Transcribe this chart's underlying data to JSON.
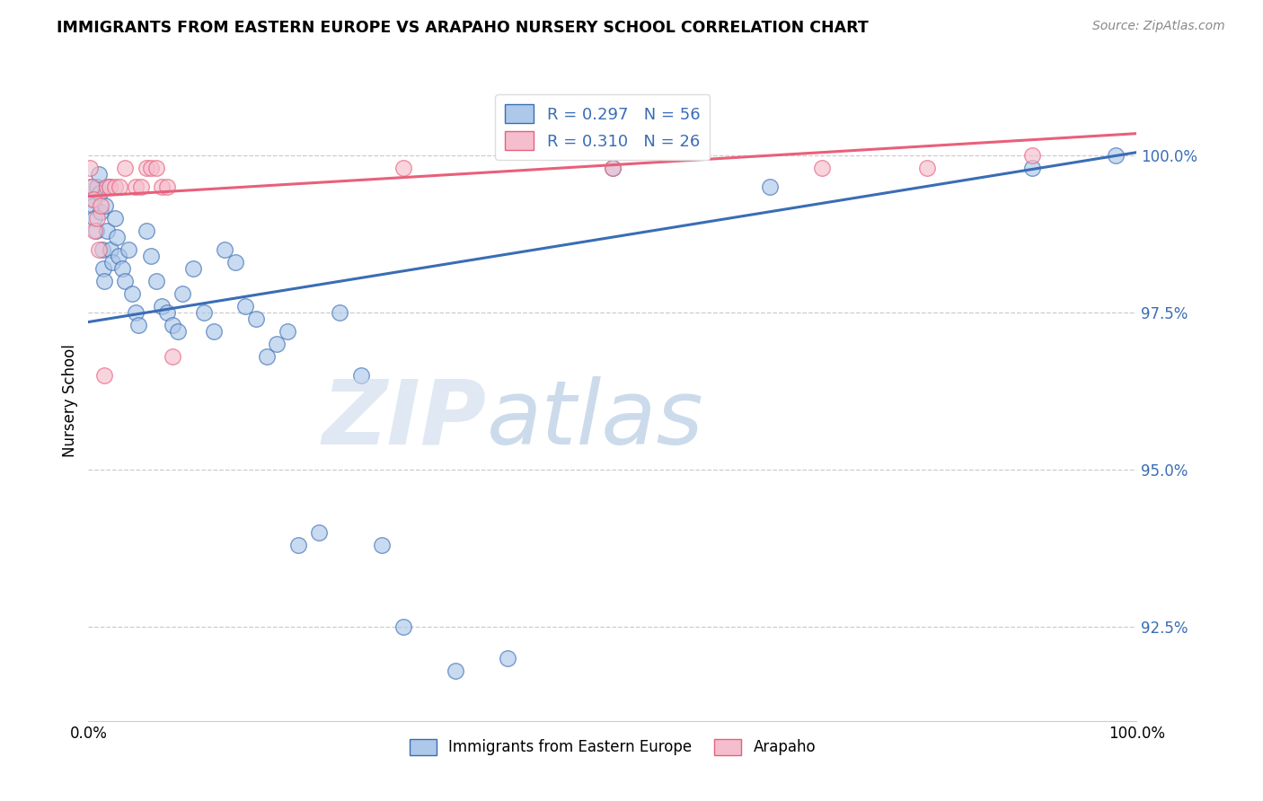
{
  "title": "IMMIGRANTS FROM EASTERN EUROPE VS ARAPAHO NURSERY SCHOOL CORRELATION CHART",
  "source": "Source: ZipAtlas.com",
  "ylabel": "Nursery School",
  "ytick_values": [
    100.0,
    97.5,
    95.0,
    92.5
  ],
  "legend_blue_r": "R = 0.297",
  "legend_blue_n": "N = 56",
  "legend_pink_r": "R = 0.310",
  "legend_pink_n": "N = 26",
  "legend_blue_label": "Immigrants from Eastern Europe",
  "legend_pink_label": "Arapaho",
  "blue_color": "#adc8e8",
  "blue_line_color": "#3a6db5",
  "pink_color": "#f5bece",
  "pink_line_color": "#e8607a",
  "blue_scatter_x": [
    0.2,
    0.4,
    0.5,
    0.6,
    0.7,
    0.8,
    1.0,
    1.1,
    1.2,
    1.3,
    1.4,
    1.5,
    1.6,
    1.8,
    2.0,
    2.1,
    2.3,
    2.5,
    2.7,
    2.9,
    3.2,
    3.5,
    3.8,
    4.2,
    4.5,
    4.8,
    5.5,
    6.0,
    6.5,
    7.0,
    7.5,
    8.0,
    8.5,
    9.0,
    10.0,
    11.0,
    12.0,
    13.0,
    14.0,
    15.0,
    16.0,
    17.0,
    18.0,
    19.0,
    20.0,
    22.0,
    24.0,
    26.0,
    28.0,
    30.0,
    35.0,
    40.0,
    50.0,
    65.0,
    90.0,
    98.0
  ],
  "blue_scatter_y": [
    99.5,
    99.3,
    99.2,
    99.0,
    98.8,
    99.5,
    99.7,
    99.4,
    99.1,
    98.5,
    98.2,
    98.0,
    99.2,
    98.8,
    99.5,
    98.5,
    98.3,
    99.0,
    98.7,
    98.4,
    98.2,
    98.0,
    98.5,
    97.8,
    97.5,
    97.3,
    98.8,
    98.4,
    98.0,
    97.6,
    97.5,
    97.3,
    97.2,
    97.8,
    98.2,
    97.5,
    97.2,
    98.5,
    98.3,
    97.6,
    97.4,
    96.8,
    97.0,
    97.2,
    93.8,
    94.0,
    97.5,
    96.5,
    93.8,
    92.5,
    91.8,
    92.0,
    99.8,
    99.5,
    99.8,
    100.0
  ],
  "pink_scatter_x": [
    0.1,
    0.3,
    0.5,
    0.6,
    0.8,
    1.0,
    1.2,
    1.5,
    1.8,
    2.0,
    2.5,
    3.0,
    3.5,
    4.5,
    5.0,
    5.5,
    6.0,
    6.5,
    7.0,
    7.5,
    8.0,
    30.0,
    50.0,
    70.0,
    80.0,
    90.0
  ],
  "pink_scatter_y": [
    99.8,
    99.5,
    99.3,
    98.8,
    99.0,
    98.5,
    99.2,
    96.5,
    99.5,
    99.5,
    99.5,
    99.5,
    99.8,
    99.5,
    99.5,
    99.8,
    99.8,
    99.8,
    99.5,
    99.5,
    96.8,
    99.8,
    99.8,
    99.8,
    99.8,
    100.0
  ],
  "xlim": [
    0,
    100
  ],
  "ylim": [
    91.0,
    101.2
  ],
  "blue_line_x": [
    0,
    100
  ],
  "blue_line_y_start": 97.35,
  "blue_line_y_end": 100.05,
  "pink_line_x": [
    0,
    100
  ],
  "pink_line_y_start": 99.35,
  "pink_line_y_end": 100.35
}
